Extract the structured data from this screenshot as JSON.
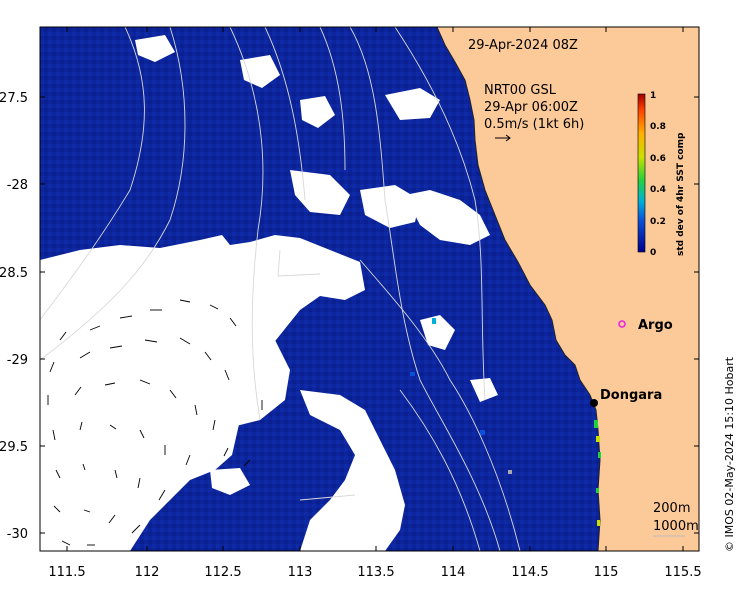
{
  "map": {
    "title": "29-Apr-2024 08Z",
    "product_line1": "NRT00 GSL",
    "product_line2": "29-Apr 06:00Z",
    "product_line3": "0.5m/s (1kt 6h)",
    "credit": "© IMOS 02-May-2024 15:10 Hobart",
    "x_ticks": [
      "111.5",
      "112",
      "112.5",
      "113",
      "113.5",
      "114",
      "114.5",
      "115",
      "115.5"
    ],
    "y_ticks": [
      "-27.5",
      "-28",
      "-28.5",
      "-29",
      "-29.5",
      "-30"
    ],
    "colorbar": {
      "title": "std dev of 4hr SST comp",
      "ticks": [
        "1",
        "0.8",
        "0.6",
        "0.4",
        "0.2",
        "0"
      ]
    },
    "places": [
      {
        "label": "Argo"
      },
      {
        "label": "Dongara"
      }
    ],
    "isobaths": [
      "200m",
      "1000m"
    ],
    "colors": {
      "land": "#fcc998",
      "ocean": "#0c259c",
      "cloud": "#ffffff",
      "argo": "#e81ee8"
    }
  }
}
